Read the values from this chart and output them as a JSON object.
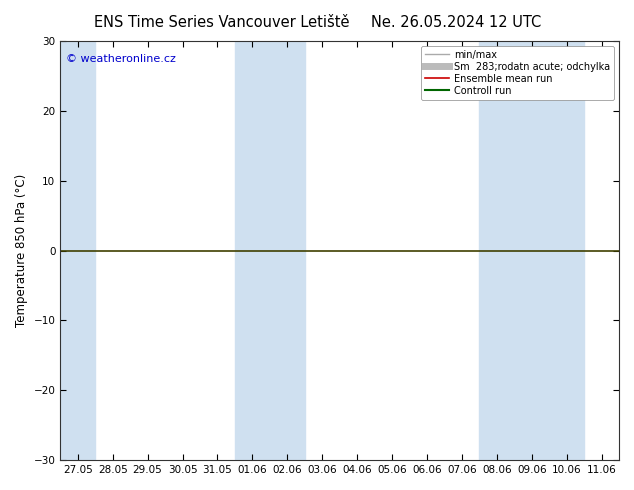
{
  "title_left": "ENS Time Series Vancouver Letiště",
  "title_right": "Ne. 26.05.2024 12 UTC",
  "ylabel": "Temperature 850 hPa (°C)",
  "ylim": [
    -30,
    30
  ],
  "yticks": [
    -30,
    -20,
    -10,
    0,
    10,
    20,
    30
  ],
  "x_labels": [
    "27.05",
    "28.05",
    "29.05",
    "30.05",
    "31.05",
    "01.06",
    "02.06",
    "03.06",
    "04.06",
    "05.06",
    "06.06",
    "07.06",
    "08.06",
    "09.06",
    "10.06",
    "11.06"
  ],
  "band_indices": [
    0,
    5,
    6,
    12,
    13,
    14
  ],
  "band_color": "#cfe0f0",
  "background_color": "#ffffff",
  "watermark": "© weatheronline.cz",
  "watermark_color": "#0000cc",
  "legend_entries": [
    {
      "label": "min/max",
      "color": "#aaaaaa",
      "lw": 1.0
    },
    {
      "label": "Sm  283;rodatn acute; odchylka",
      "color": "#bbbbbb",
      "lw": 5
    },
    {
      "label": "Ensemble mean run",
      "color": "#cc0000",
      "lw": 1.2
    },
    {
      "label": "Controll run",
      "color": "#006600",
      "lw": 1.5
    }
  ],
  "zero_line_color": "#404000",
  "zero_line_lw": 1.2,
  "spine_color": "#333333",
  "title_fontsize": 10.5,
  "tick_fontsize": 7.5,
  "ylabel_fontsize": 8.5,
  "watermark_fontsize": 8,
  "legend_fontsize": 7
}
